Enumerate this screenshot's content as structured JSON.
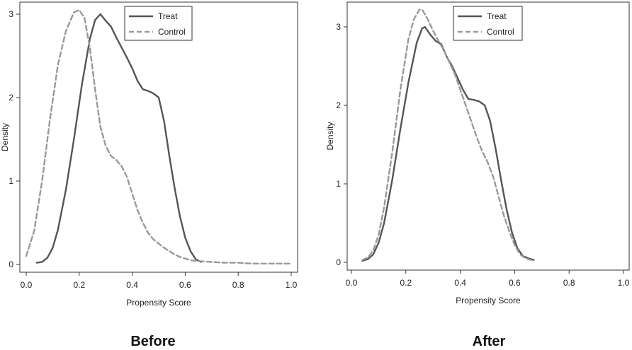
{
  "chart_data": [
    {
      "type": "line",
      "caption": "Before",
      "xlabel": "Propensity Score",
      "ylabel": "Density",
      "xlim": [
        0.0,
        1.0
      ],
      "ylim": [
        0,
        3.2
      ],
      "xticks": [
        "0.0",
        "0.2",
        "0.4",
        "0.6",
        "0.8",
        "1.0"
      ],
      "yticks": [
        "0",
        "1",
        "2",
        "3"
      ],
      "grid": false,
      "legend_position": "top-right",
      "series": [
        {
          "name": "Treat",
          "style": "solid",
          "color": "#555555",
          "x": [
            0.04,
            0.06,
            0.08,
            0.1,
            0.12,
            0.15,
            0.18,
            0.21,
            0.24,
            0.26,
            0.28,
            0.3,
            0.32,
            0.34,
            0.36,
            0.38,
            0.4,
            0.42,
            0.44,
            0.46,
            0.48,
            0.5,
            0.52,
            0.54,
            0.56,
            0.58,
            0.6,
            0.62,
            0.64,
            0.66
          ],
          "y": [
            0.02,
            0.03,
            0.08,
            0.2,
            0.42,
            0.9,
            1.5,
            2.15,
            2.7,
            2.93,
            3.0,
            2.92,
            2.85,
            2.72,
            2.6,
            2.48,
            2.35,
            2.2,
            2.1,
            2.08,
            2.05,
            2.0,
            1.72,
            1.3,
            0.92,
            0.58,
            0.32,
            0.16,
            0.06,
            0.03
          ]
        },
        {
          "name": "Control",
          "style": "dashed",
          "color": "#999999",
          "x": [
            0.0,
            0.03,
            0.06,
            0.09,
            0.12,
            0.15,
            0.18,
            0.2,
            0.22,
            0.24,
            0.26,
            0.28,
            0.3,
            0.32,
            0.34,
            0.36,
            0.38,
            0.4,
            0.42,
            0.44,
            0.46,
            0.48,
            0.5,
            0.52,
            0.54,
            0.56,
            0.58,
            0.6,
            0.62,
            0.65,
            0.7,
            0.75,
            0.8,
            0.85,
            0.9,
            0.95,
            1.0
          ],
          "y": [
            0.1,
            0.4,
            1.0,
            1.75,
            2.4,
            2.8,
            3.02,
            3.05,
            2.95,
            2.6,
            2.1,
            1.65,
            1.42,
            1.3,
            1.25,
            1.18,
            1.05,
            0.85,
            0.65,
            0.5,
            0.38,
            0.3,
            0.25,
            0.2,
            0.16,
            0.12,
            0.09,
            0.07,
            0.05,
            0.04,
            0.03,
            0.02,
            0.02,
            0.01,
            0.01,
            0.01,
            0.01
          ]
        }
      ]
    },
    {
      "type": "line",
      "caption": "After",
      "xlabel": "Propensity Score",
      "ylabel": "Density",
      "xlim": [
        0.0,
        1.0
      ],
      "ylim": [
        0,
        3.2
      ],
      "xticks": [
        "0.0",
        "0.2",
        "0.4",
        "0.6",
        "0.8",
        "1.0"
      ],
      "yticks": [
        "0",
        "1",
        "2",
        "3"
      ],
      "grid": false,
      "legend_position": "top-right",
      "series": [
        {
          "name": "Treat",
          "style": "solid",
          "color": "#555555",
          "x": [
            0.04,
            0.06,
            0.08,
            0.1,
            0.12,
            0.15,
            0.18,
            0.21,
            0.24,
            0.26,
            0.27,
            0.29,
            0.31,
            0.33,
            0.35,
            0.37,
            0.39,
            0.41,
            0.43,
            0.45,
            0.47,
            0.49,
            0.51,
            0.53,
            0.55,
            0.57,
            0.59,
            0.61,
            0.63,
            0.65,
            0.67
          ],
          "y": [
            0.02,
            0.04,
            0.1,
            0.25,
            0.5,
            1.05,
            1.7,
            2.3,
            2.8,
            2.98,
            3.0,
            2.9,
            2.82,
            2.78,
            2.62,
            2.5,
            2.35,
            2.2,
            2.08,
            2.07,
            2.05,
            2.0,
            1.8,
            1.45,
            1.05,
            0.68,
            0.38,
            0.18,
            0.08,
            0.05,
            0.03
          ]
        },
        {
          "name": "Control",
          "style": "dashed",
          "color": "#999999",
          "x": [
            0.04,
            0.06,
            0.08,
            0.1,
            0.12,
            0.15,
            0.18,
            0.21,
            0.23,
            0.25,
            0.26,
            0.28,
            0.3,
            0.32,
            0.34,
            0.36,
            0.38,
            0.4,
            0.42,
            0.44,
            0.46,
            0.48,
            0.5,
            0.52,
            0.54,
            0.56,
            0.58,
            0.6,
            0.62,
            0.64,
            0.66
          ],
          "y": [
            0.03,
            0.06,
            0.15,
            0.35,
            0.7,
            1.4,
            2.2,
            2.85,
            3.1,
            3.22,
            3.22,
            3.1,
            2.95,
            2.82,
            2.7,
            2.55,
            2.4,
            2.2,
            2.0,
            1.8,
            1.6,
            1.42,
            1.28,
            1.1,
            0.85,
            0.6,
            0.4,
            0.22,
            0.1,
            0.05,
            0.03
          ]
        }
      ]
    }
  ]
}
